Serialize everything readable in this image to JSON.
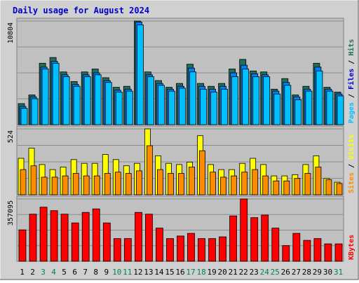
{
  "title": "Daily usage for August 2024",
  "colors": {
    "background": "#d0d0d0",
    "panel": "#c0c0c0",
    "title": "#0000cc",
    "grid": "#8c8c8c",
    "hits": "#1f6f5c",
    "files": "#0080ff",
    "pages": "#00c0ff",
    "visits": "#ffff00",
    "sites": "#ff8c00",
    "kbytes": "#ff0000",
    "weekend": "#00805a",
    "weekday": "#000000"
  },
  "chart_data": [
    {
      "type": "bar",
      "name": "hits-files-pages",
      "ymax_label": "10804",
      "ylim": [
        0,
        10804
      ],
      "legend": [
        {
          "label": "Pages",
          "color": "#00c0ff"
        },
        {
          "label": "Files",
          "color": "#0000cc"
        },
        {
          "label": "Hits",
          "color": "#1f6f5c"
        }
      ],
      "categories": [
        "1",
        "2",
        "3",
        "4",
        "5",
        "6",
        "7",
        "8",
        "9",
        "10",
        "11",
        "12",
        "13",
        "14",
        "15",
        "16",
        "17",
        "18",
        "19",
        "20",
        "21",
        "22",
        "23",
        "24",
        "25",
        "26",
        "27",
        "28",
        "29",
        "30",
        "31"
      ],
      "series": [
        {
          "name": "Hits",
          "values": [
            2200,
            3100,
            6400,
            7000,
            5500,
            4500,
            5500,
            5800,
            4900,
            3900,
            4000,
            10804,
            5500,
            4600,
            3900,
            4300,
            6300,
            4300,
            4000,
            4300,
            5800,
            6800,
            5600,
            5500,
            3700,
            4800,
            3100,
            4000,
            6400,
            3900,
            3400
          ]
        },
        {
          "name": "Files",
          "values": [
            1900,
            2900,
            6000,
            6600,
            5200,
            4200,
            5200,
            5400,
            4600,
            3600,
            3700,
            10700,
            5200,
            4300,
            3700,
            4000,
            5900,
            4000,
            3700,
            4000,
            5400,
            6200,
            5300,
            5200,
            3500,
            4400,
            2900,
            3700,
            6000,
            3700,
            3200
          ]
        },
        {
          "name": "Pages",
          "values": [
            1700,
            2700,
            5800,
            6400,
            5000,
            4000,
            5000,
            5200,
            4400,
            3400,
            3500,
            10400,
            5000,
            4100,
            3500,
            3800,
            5500,
            3700,
            3400,
            3700,
            5000,
            5800,
            5000,
            5000,
            3200,
            4100,
            2600,
            3500,
            5600,
            3500,
            3000
          ]
        }
      ]
    },
    {
      "type": "bar",
      "name": "visits-sites",
      "ymax_label": "524",
      "ylim": [
        0,
        524
      ],
      "legend": [
        {
          "label": "Sites",
          "color": "#ff8c00"
        },
        {
          "label": "Visits",
          "color": "#ffff00"
        }
      ],
      "categories": [
        "1",
        "2",
        "3",
        "4",
        "5",
        "6",
        "7",
        "8",
        "9",
        "10",
        "11",
        "12",
        "13",
        "14",
        "15",
        "16",
        "17",
        "18",
        "19",
        "20",
        "21",
        "22",
        "23",
        "24",
        "25",
        "26",
        "27",
        "28",
        "29",
        "30",
        "31"
      ],
      "series": [
        {
          "name": "Visits",
          "values": [
            290,
            370,
            240,
            200,
            220,
            280,
            250,
            250,
            320,
            280,
            230,
            250,
            524,
            310,
            250,
            240,
            260,
            470,
            240,
            200,
            200,
            250,
            290,
            240,
            150,
            150,
            160,
            240,
            310,
            130,
            100
          ]
        },
        {
          "name": "Sites",
          "values": [
            200,
            230,
            140,
            140,
            150,
            170,
            150,
            150,
            170,
            180,
            170,
            190,
            390,
            200,
            170,
            170,
            220,
            350,
            180,
            140,
            150,
            180,
            200,
            150,
            110,
            110,
            130,
            170,
            220,
            120,
            90
          ]
        }
      ]
    },
    {
      "type": "bar",
      "name": "kbytes",
      "ymax_label": "357095",
      "ylim": [
        0,
        357095
      ],
      "legend": [
        {
          "label": "KBytes",
          "color": "#ff0000"
        }
      ],
      "categories": [
        "1",
        "2",
        "3",
        "4",
        "5",
        "6",
        "7",
        "8",
        "9",
        "10",
        "11",
        "12",
        "13",
        "14",
        "15",
        "16",
        "17",
        "18",
        "19",
        "20",
        "21",
        "22",
        "23",
        "24",
        "25",
        "26",
        "27",
        "28",
        "29",
        "30",
        "31"
      ],
      "series": [
        {
          "name": "KBytes",
          "values": [
            180000,
            270000,
            310000,
            290000,
            270000,
            220000,
            280000,
            300000,
            220000,
            130000,
            130000,
            280000,
            270000,
            190000,
            130000,
            145000,
            160000,
            130000,
            130000,
            140000,
            260000,
            357095,
            250000,
            265000,
            190000,
            90000,
            160000,
            120000,
            130000,
            100000,
            100000
          ]
        }
      ]
    }
  ],
  "x_labels": [
    "1",
    "2",
    "3",
    "4",
    "5",
    "6",
    "7",
    "8",
    "9",
    "10",
    "11",
    "12",
    "13",
    "14",
    "15",
    "16",
    "17",
    "18",
    "19",
    "20",
    "21",
    "22",
    "23",
    "24",
    "25",
    "26",
    "27",
    "28",
    "29",
    "30",
    "31"
  ],
  "weekend_days": [
    "3",
    "4",
    "10",
    "11",
    "17",
    "18",
    "24",
    "25",
    "31"
  ]
}
